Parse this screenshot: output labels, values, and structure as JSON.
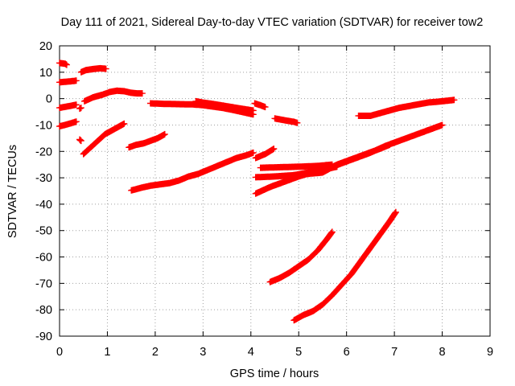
{
  "chart_data": {
    "type": "scatter",
    "title": "Day 111 of 2021, Sidereal Day-to-day VTEC variation (SDTVAR) for receiver tow2",
    "xlabel": "GPS time / hours",
    "ylabel": "SDTVAR / TECUs",
    "xlim": [
      0,
      9
    ],
    "ylim": [
      -90,
      20
    ],
    "xticks": [
      0,
      1,
      2,
      3,
      4,
      5,
      6,
      7,
      8,
      9
    ],
    "yticks": [
      20,
      10,
      0,
      -10,
      -20,
      -30,
      -40,
      -50,
      -60,
      -70,
      -80,
      -90
    ],
    "grid": true,
    "marker": "+",
    "color": "#ff0000",
    "series": [
      {
        "name": "s1",
        "points": [
          [
            0.0,
            13.5
          ],
          [
            0.12,
            13.2
          ],
          [
            0.15,
            12.8
          ]
        ]
      },
      {
        "name": "s2",
        "points": [
          [
            0.0,
            6.2
          ],
          [
            0.2,
            6.5
          ],
          [
            0.35,
            6.8
          ]
        ]
      },
      {
        "name": "s3",
        "points": [
          [
            0.45,
            10.0
          ],
          [
            0.55,
            10.8
          ],
          [
            0.7,
            11.2
          ],
          [
            0.85,
            11.5
          ],
          [
            0.97,
            11.3
          ]
        ]
      },
      {
        "name": "s4",
        "points": [
          [
            0.0,
            -3.5
          ],
          [
            0.15,
            -3.0
          ],
          [
            0.3,
            -2.5
          ],
          [
            0.35,
            -2.3
          ]
        ]
      },
      {
        "name": "s5",
        "points": [
          [
            0.42,
            -3.8
          ],
          [
            0.45,
            -3.5
          ]
        ]
      },
      {
        "name": "s6",
        "points": [
          [
            0.52,
            -1.0
          ],
          [
            0.7,
            0.5
          ],
          [
            0.9,
            1.5
          ],
          [
            1.05,
            2.5
          ],
          [
            1.2,
            3.0
          ],
          [
            1.35,
            2.8
          ],
          [
            1.5,
            2.2
          ],
          [
            1.62,
            2.0
          ],
          [
            1.73,
            2.0
          ]
        ]
      },
      {
        "name": "s7",
        "points": [
          [
            0.0,
            -10.5
          ],
          [
            0.15,
            -9.8
          ],
          [
            0.3,
            -9.0
          ],
          [
            0.35,
            -8.7
          ]
        ]
      },
      {
        "name": "s8",
        "points": [
          [
            0.42,
            -15.5
          ],
          [
            0.45,
            -16.0
          ]
        ]
      },
      {
        "name": "s9",
        "points": [
          [
            0.5,
            -21.0
          ],
          [
            0.65,
            -18.5
          ],
          [
            0.8,
            -16.0
          ],
          [
            0.95,
            -13.5
          ],
          [
            1.1,
            -12.0
          ],
          [
            1.25,
            -10.5
          ],
          [
            1.35,
            -9.5
          ]
        ]
      },
      {
        "name": "s10",
        "points": [
          [
            1.45,
            -18.5
          ],
          [
            1.6,
            -17.5
          ],
          [
            1.75,
            -17.0
          ],
          [
            1.9,
            -16.0
          ],
          [
            2.05,
            -15.0
          ],
          [
            2.2,
            -13.5
          ]
        ]
      },
      {
        "name": "s11",
        "points": [
          [
            1.5,
            -34.8
          ],
          [
            1.7,
            -33.8
          ],
          [
            1.9,
            -33.0
          ],
          [
            2.1,
            -32.5
          ],
          [
            2.3,
            -32.0
          ],
          [
            2.5,
            -31.0
          ],
          [
            2.7,
            -29.5
          ],
          [
            2.9,
            -28.5
          ],
          [
            3.1,
            -27.0
          ],
          [
            3.3,
            -25.5
          ],
          [
            3.5,
            -24.0
          ],
          [
            3.7,
            -22.5
          ],
          [
            3.9,
            -21.5
          ],
          [
            4.05,
            -20.5
          ]
        ]
      },
      {
        "name": "s12",
        "points": [
          [
            1.9,
            -1.8
          ],
          [
            2.2,
            -2.0
          ],
          [
            2.5,
            -2.1
          ],
          [
            2.8,
            -2.2
          ],
          [
            3.0,
            -2.5
          ],
          [
            3.2,
            -3.0
          ],
          [
            3.4,
            -3.5
          ],
          [
            3.6,
            -4.2
          ],
          [
            3.8,
            -5.0
          ],
          [
            4.05,
            -6.0
          ]
        ]
      },
      {
        "name": "s13",
        "points": [
          [
            2.85,
            -1.0
          ],
          [
            3.0,
            -1.5
          ],
          [
            3.2,
            -2.0
          ],
          [
            3.4,
            -2.6
          ],
          [
            3.6,
            -3.2
          ],
          [
            3.8,
            -3.8
          ],
          [
            4.05,
            -4.5
          ]
        ]
      },
      {
        "name": "s14",
        "points": [
          [
            4.08,
            -1.8
          ],
          [
            4.2,
            -2.5
          ],
          [
            4.3,
            -3.2
          ]
        ]
      },
      {
        "name": "s15",
        "points": [
          [
            4.5,
            -7.5
          ],
          [
            4.7,
            -8.2
          ],
          [
            4.9,
            -8.8
          ],
          [
            4.97,
            -9.2
          ]
        ]
      },
      {
        "name": "s16",
        "points": [
          [
            4.1,
            -22.5
          ],
          [
            4.3,
            -21.0
          ],
          [
            4.48,
            -19.0
          ]
        ]
      },
      {
        "name": "s17",
        "points": [
          [
            4.2,
            -26.2
          ],
          [
            4.6,
            -26.0
          ],
          [
            5.0,
            -25.8
          ],
          [
            5.4,
            -25.5
          ],
          [
            5.7,
            -25.0
          ]
        ]
      },
      {
        "name": "s18",
        "points": [
          [
            4.1,
            -29.8
          ],
          [
            4.5,
            -29.5
          ],
          [
            4.9,
            -29.0
          ],
          [
            5.2,
            -28.0
          ],
          [
            5.5,
            -27.0
          ],
          [
            5.8,
            -25.8
          ]
        ]
      },
      {
        "name": "s19",
        "points": [
          [
            4.1,
            -36.0
          ],
          [
            4.4,
            -33.5
          ],
          [
            4.7,
            -31.5
          ],
          [
            5.0,
            -29.5
          ],
          [
            5.3,
            -27.8
          ],
          [
            5.6,
            -26.5
          ],
          [
            5.9,
            -24.5
          ],
          [
            6.2,
            -22.5
          ],
          [
            6.5,
            -20.5
          ],
          [
            6.8,
            -18.0
          ],
          [
            7.1,
            -16.0
          ],
          [
            7.4,
            -14.0
          ],
          [
            7.7,
            -12.0
          ],
          [
            8.0,
            -10.0
          ]
        ]
      },
      {
        "name": "s20",
        "points": [
          [
            4.9,
            -29.0
          ],
          [
            5.2,
            -28.5
          ],
          [
            5.5,
            -28.0
          ],
          [
            5.8,
            -25.0
          ],
          [
            6.1,
            -23.0
          ],
          [
            6.4,
            -21.0
          ],
          [
            6.7,
            -19.0
          ],
          [
            6.9,
            -17.5
          ]
        ]
      },
      {
        "name": "s21",
        "points": [
          [
            6.25,
            -6.5
          ],
          [
            6.5,
            -6.5
          ],
          [
            6.7,
            -5.5
          ],
          [
            6.9,
            -4.5
          ],
          [
            7.1,
            -3.5
          ],
          [
            7.4,
            -2.5
          ],
          [
            7.7,
            -1.5
          ],
          [
            8.0,
            -1.0
          ],
          [
            8.25,
            -0.5
          ]
        ]
      },
      {
        "name": "s22",
        "points": [
          [
            4.4,
            -69.5
          ],
          [
            4.6,
            -68.0
          ],
          [
            4.8,
            -66.0
          ],
          [
            5.0,
            -63.5
          ],
          [
            5.2,
            -61.0
          ],
          [
            5.4,
            -57.5
          ],
          [
            5.6,
            -53.0
          ],
          [
            5.7,
            -50.5
          ]
        ]
      },
      {
        "name": "s23",
        "points": [
          [
            4.9,
            -84.0
          ],
          [
            5.1,
            -82.0
          ],
          [
            5.3,
            -80.5
          ],
          [
            5.5,
            -78.0
          ],
          [
            5.7,
            -74.5
          ],
          [
            5.9,
            -70.5
          ],
          [
            6.1,
            -66.5
          ],
          [
            6.3,
            -61.5
          ],
          [
            6.5,
            -56.5
          ],
          [
            6.7,
            -51.5
          ],
          [
            6.9,
            -46.5
          ],
          [
            7.03,
            -43.0
          ]
        ]
      }
    ]
  }
}
